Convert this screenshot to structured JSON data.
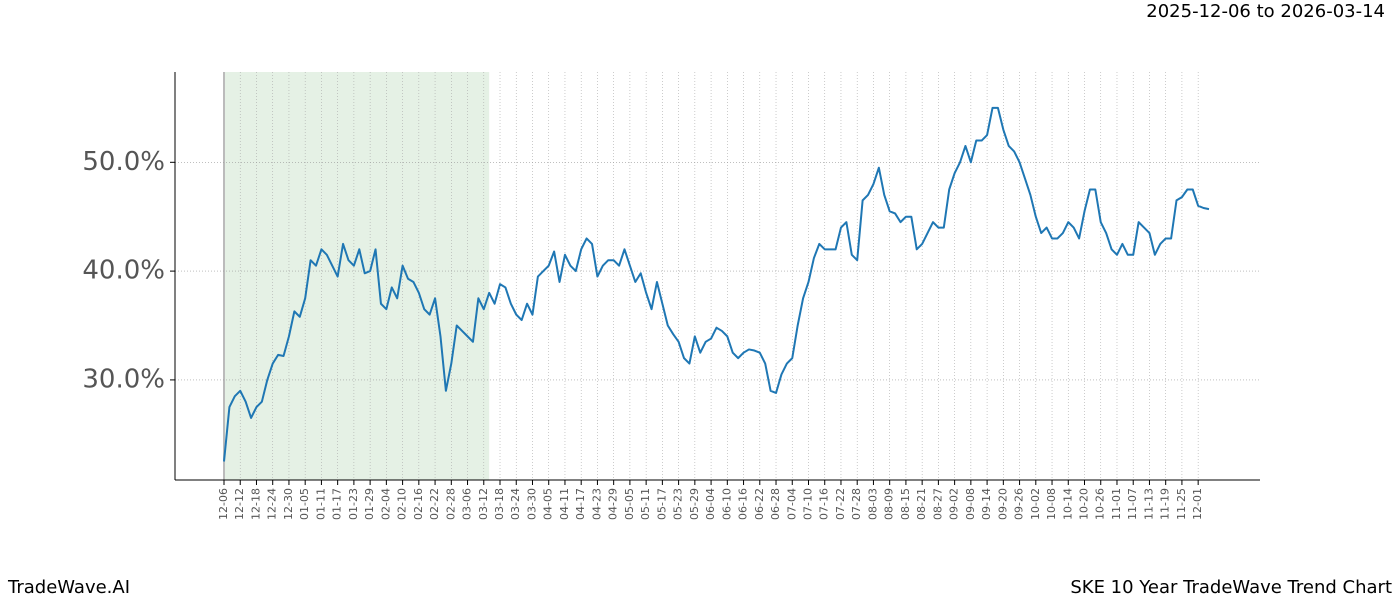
{
  "chart_data": {
    "type": "line",
    "subtitle": "2025-12-06 to 2026-03-14",
    "footer_left": "TradeWave.AI",
    "footer_right": "SKE 10 Year TradeWave Trend Chart",
    "categories": [
      "12-06",
      null,
      null,
      "12-12",
      null,
      null,
      "12-18",
      null,
      null,
      "12-24",
      null,
      null,
      "12-30",
      null,
      null,
      "01-05",
      null,
      null,
      "01-11",
      null,
      null,
      "01-17",
      null,
      null,
      "01-23",
      null,
      null,
      "01-29",
      null,
      null,
      "02-04",
      null,
      null,
      "02-10",
      null,
      null,
      "02-16",
      null,
      null,
      "02-22",
      null,
      null,
      "02-28",
      null,
      null,
      "03-06",
      null,
      null,
      "03-12",
      null,
      null,
      "03-18",
      null,
      null,
      "03-24",
      null,
      null,
      "03-30",
      null,
      null,
      "04-05",
      null,
      null,
      "04-11",
      null,
      null,
      "04-17",
      null,
      null,
      "04-23",
      null,
      null,
      "04-29",
      null,
      null,
      "05-05",
      null,
      null,
      "05-11",
      null,
      null,
      "05-17",
      null,
      null,
      "05-23",
      null,
      null,
      "05-29",
      null,
      null,
      "06-04",
      null,
      null,
      "06-10",
      null,
      null,
      "06-16",
      null,
      null,
      "06-22",
      null,
      null,
      "06-28",
      null,
      null,
      "07-04",
      null,
      null,
      "07-10",
      null,
      null,
      "07-16",
      null,
      null,
      "07-22",
      null,
      null,
      "07-28",
      null,
      null,
      "08-03",
      null,
      null,
      "08-09",
      null,
      null,
      "08-15",
      null,
      null,
      "08-21",
      null,
      null,
      "08-27",
      null,
      null,
      "09-02",
      null,
      null,
      "09-08",
      null,
      null,
      "09-14",
      null,
      null,
      "09-20",
      null,
      null,
      "09-26",
      null,
      null,
      "10-02",
      null,
      null,
      "10-08",
      null,
      null,
      "10-14",
      null,
      null,
      "10-20",
      null,
      null,
      "10-26",
      null,
      null,
      "11-01",
      null,
      null,
      "11-07",
      null,
      null,
      "11-13",
      null,
      null,
      "11-19",
      null,
      null,
      "11-25",
      null,
      null,
      "12-01",
      null,
      null
    ],
    "values": [
      22.5,
      27.5,
      28.5,
      29,
      28,
      26.5,
      27.5,
      28,
      30,
      31.5,
      32.3,
      32.2,
      34,
      36.3,
      35.8,
      37.5,
      41,
      40.5,
      42,
      41.5,
      40.5,
      39.5,
      42.5,
      41,
      40.5,
      42,
      39.8,
      40,
      42,
      37,
      36.5,
      38.5,
      37.5,
      40.5,
      39.3,
      39,
      38,
      36.5,
      36,
      37.5,
      34,
      29,
      31.5,
      35,
      34.5,
      34,
      33.5,
      37.5,
      36.5,
      38,
      37,
      38.8,
      38.5,
      37,
      36,
      35.5,
      37,
      36,
      39.5,
      40,
      40.5,
      41.8,
      39,
      41.5,
      40.5,
      40,
      42,
      43,
      42.5,
      39.5,
      40.5,
      41,
      41,
      40.5,
      42,
      40.5,
      39,
      39.8,
      38,
      36.5,
      39,
      37,
      35,
      34.2,
      33.5,
      32,
      31.5,
      34,
      32.5,
      33.5,
      33.8,
      34.8,
      34.5,
      34,
      32.5,
      32,
      32.5,
      32.8,
      32.7,
      32.5,
      31.5,
      29,
      28.8,
      30.5,
      31.5,
      32,
      35,
      37.5,
      39,
      41.2,
      42.5,
      42,
      42,
      42,
      44,
      44.5,
      41.5,
      41,
      46.5,
      47,
      48,
      49.5,
      47,
      45.5,
      45.3,
      44.5,
      45,
      45,
      42,
      42.5,
      43.5,
      44.5,
      44,
      44,
      47.5,
      49,
      50,
      51.5,
      50,
      52,
      52,
      52.5,
      55,
      55,
      53,
      51.5,
      51,
      50,
      48.5,
      47,
      45,
      43.5,
      44,
      43,
      43,
      43.5,
      44.5,
      44,
      43,
      45.5,
      47.5,
      47.5,
      44.5,
      43.5,
      42,
      41.5,
      42.5,
      41.5,
      41.5,
      44.5,
      44,
      43.5,
      41.5,
      42.5,
      43,
      43,
      46.5,
      46.8,
      47.5,
      47.5,
      46,
      45.8,
      45.7
    ],
    "color": "#1f77b4",
    "highlight": {
      "span": [
        0,
        49
      ],
      "color": "#e5f1e5"
    },
    "ylim": [
      20.8,
      58.3
    ],
    "yticks": [
      {
        "value": 30,
        "label": "30.0%"
      },
      {
        "value": 40,
        "label": "40.0%"
      },
      {
        "value": 50,
        "label": "50.0%"
      }
    ],
    "grid": true
  }
}
